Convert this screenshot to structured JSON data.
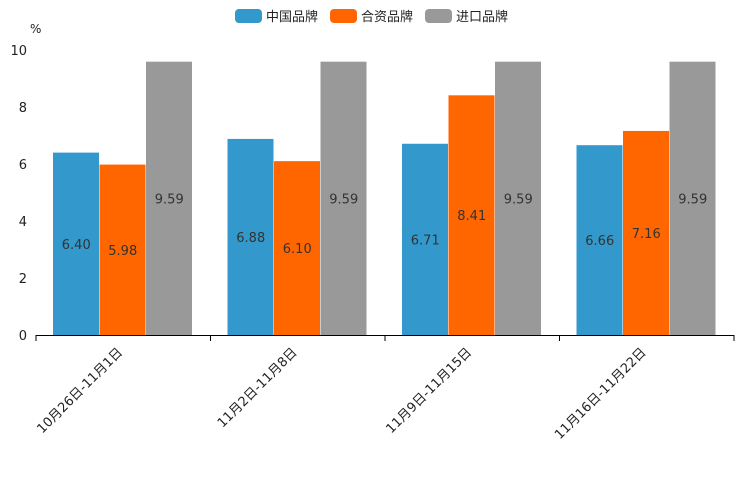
{
  "chart_data": {
    "type": "bar",
    "title": "",
    "xlabel": "",
    "ylabel": "%",
    "ylim": [
      0,
      10
    ],
    "yticks": [
      0,
      2,
      4,
      6,
      8,
      10
    ],
    "legend_position": "top-center",
    "categories": [
      "10月26日-11月1日",
      "11月2日-11月8日",
      "11月9日-11月15日",
      "11月16日-11月22日"
    ],
    "series": [
      {
        "name": "中国品牌",
        "color": "#3399CC",
        "values": [
          6.4,
          6.88,
          6.71,
          6.66
        ],
        "labels": [
          "6.40",
          "6.88",
          "6.71",
          "6.66"
        ]
      },
      {
        "name": "合资品牌",
        "color": "#FF6600",
        "values": [
          5.98,
          6.1,
          8.41,
          7.16
        ],
        "labels": [
          "5.98",
          "6.10",
          "8.41",
          "7.16"
        ]
      },
      {
        "name": "进口品牌",
        "color": "#999999",
        "values": [
          9.59,
          9.59,
          9.59,
          9.59
        ],
        "labels": [
          "9.59",
          "9.59",
          "9.59",
          "9.59"
        ]
      }
    ]
  }
}
